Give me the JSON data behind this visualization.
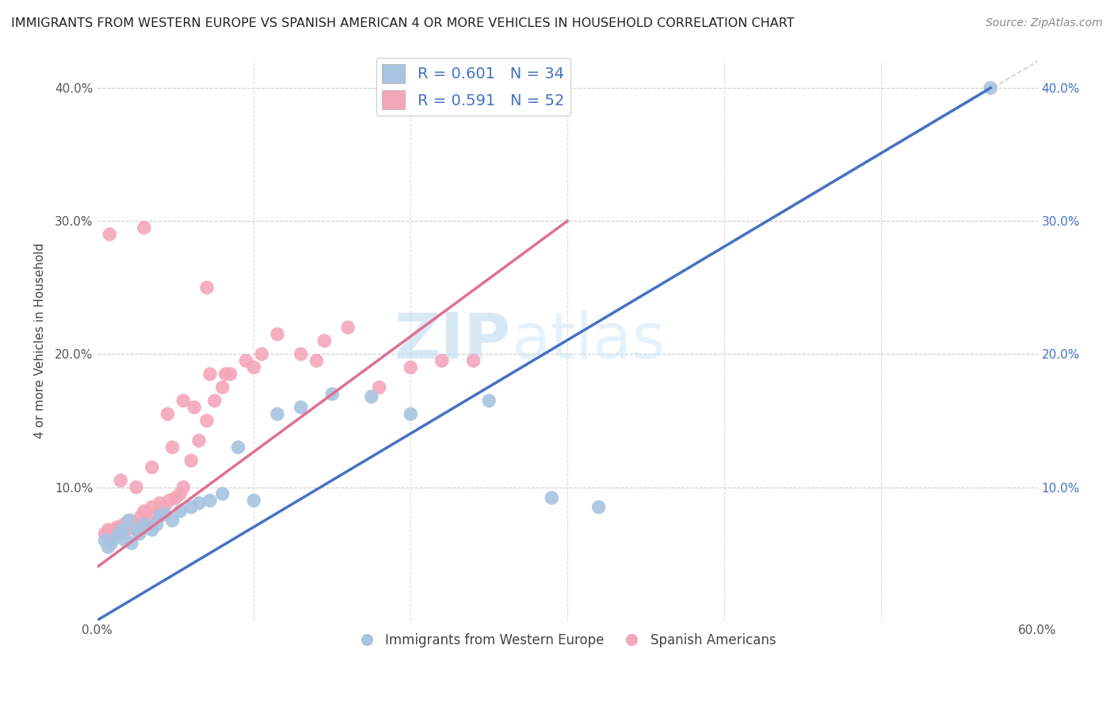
{
  "title": "IMMIGRANTS FROM WESTERN EUROPE VS SPANISH AMERICAN 4 OR MORE VEHICLES IN HOUSEHOLD CORRELATION CHART",
  "source": "Source: ZipAtlas.com",
  "ylabel": "4 or more Vehicles in Household",
  "xlabel": "",
  "xlim": [
    0.0,
    0.6
  ],
  "ylim": [
    0.0,
    0.42
  ],
  "xticks": [
    0.0,
    0.1,
    0.2,
    0.3,
    0.4,
    0.5,
    0.6
  ],
  "xticklabels": [
    "0.0%",
    "",
    "",
    "",
    "",
    "",
    "60.0%"
  ],
  "yticks": [
    0.0,
    0.1,
    0.2,
    0.3,
    0.4
  ],
  "yticklabels_left": [
    "",
    "10.0%",
    "20.0%",
    "30.0%",
    "40.0%"
  ],
  "yticklabels_right": [
    "",
    "10.0%",
    "20.0%",
    "30.0%",
    "40.0%"
  ],
  "watermark": "ZIPatlas",
  "blue_color": "#a8c4e0",
  "pink_color": "#f4a7b9",
  "blue_line_color": "#4472c4",
  "pink_line_color": "#e07090",
  "diag_line_color": "#cccccc",
  "legend_blue_label": "R = 0.601   N = 34",
  "legend_pink_label": "R = 0.591   N = 52",
  "legend_series1": "Immigrants from Western Europe",
  "legend_series2": "Spanish Americans",
  "blue_line_x0": 0.0,
  "blue_line_y0": 0.0,
  "blue_line_x1": 0.57,
  "blue_line_y1": 0.4,
  "pink_line_x0": 0.0,
  "pink_line_y0": 0.04,
  "pink_line_x1": 0.3,
  "pink_line_y1": 0.3,
  "blue_scatter_x": [
    0.005,
    0.007,
    0.009,
    0.012,
    0.014,
    0.016,
    0.018,
    0.02,
    0.022,
    0.025,
    0.027,
    0.03,
    0.033,
    0.035,
    0.038,
    0.04,
    0.043,
    0.048,
    0.053,
    0.06,
    0.065,
    0.072,
    0.08,
    0.09,
    0.1,
    0.115,
    0.13,
    0.15,
    0.175,
    0.2,
    0.25,
    0.29,
    0.32,
    0.57
  ],
  "blue_scatter_y": [
    0.06,
    0.055,
    0.058,
    0.062,
    0.065,
    0.068,
    0.06,
    0.075,
    0.058,
    0.068,
    0.065,
    0.072,
    0.07,
    0.068,
    0.072,
    0.078,
    0.08,
    0.075,
    0.082,
    0.085,
    0.088,
    0.09,
    0.095,
    0.13,
    0.09,
    0.155,
    0.16,
    0.17,
    0.168,
    0.155,
    0.165,
    0.092,
    0.085,
    0.4
  ],
  "pink_scatter_x": [
    0.005,
    0.007,
    0.009,
    0.011,
    0.013,
    0.015,
    0.017,
    0.019,
    0.021,
    0.023,
    0.025,
    0.028,
    0.03,
    0.032,
    0.035,
    0.038,
    0.04,
    0.043,
    0.046,
    0.05,
    0.053,
    0.055,
    0.06,
    0.065,
    0.07,
    0.075,
    0.08,
    0.085,
    0.095,
    0.105,
    0.115,
    0.13,
    0.145,
    0.16,
    0.18,
    0.2,
    0.22,
    0.24,
    0.03,
    0.07,
    0.1,
    0.14,
    0.055,
    0.045,
    0.062,
    0.072,
    0.082,
    0.025,
    0.035,
    0.048,
    0.015,
    0.008
  ],
  "pink_scatter_y": [
    0.065,
    0.068,
    0.062,
    0.068,
    0.07,
    0.065,
    0.072,
    0.068,
    0.075,
    0.07,
    0.072,
    0.078,
    0.082,
    0.075,
    0.085,
    0.08,
    0.088,
    0.085,
    0.09,
    0.092,
    0.095,
    0.1,
    0.12,
    0.135,
    0.15,
    0.165,
    0.175,
    0.185,
    0.195,
    0.2,
    0.215,
    0.2,
    0.21,
    0.22,
    0.175,
    0.19,
    0.195,
    0.195,
    0.295,
    0.25,
    0.19,
    0.195,
    0.165,
    0.155,
    0.16,
    0.185,
    0.185,
    0.1,
    0.115,
    0.13,
    0.105,
    0.29
  ]
}
